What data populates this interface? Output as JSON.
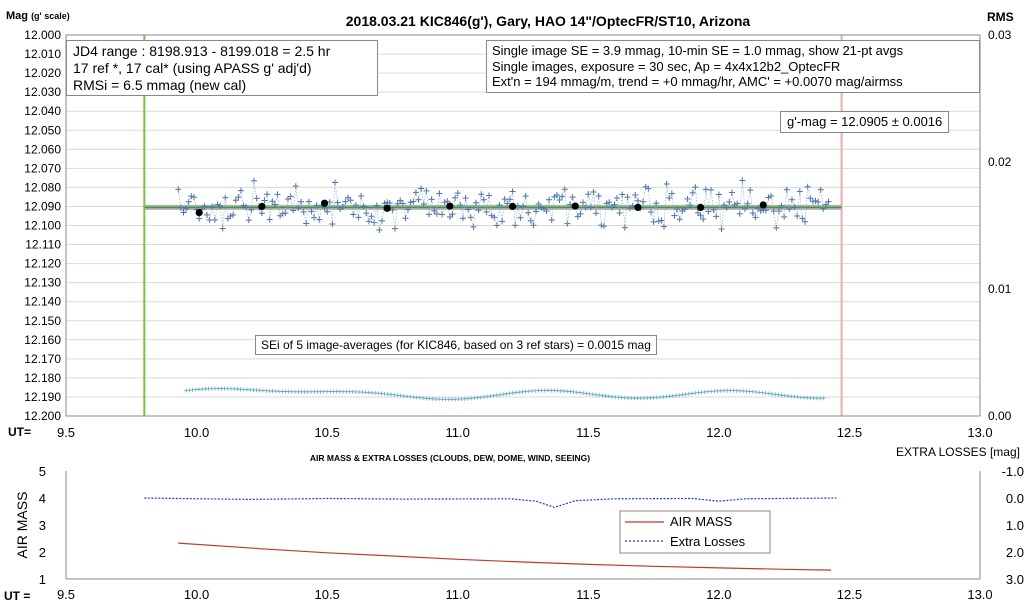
{
  "chart_data": [
    {
      "type": "scatter",
      "title": "2018.03.21  KIC846(g'),  Gary, HAO  14\"/OptecFR/ST10,  Arizona",
      "ylabel": "Mag",
      "ylabel_note": "(g' scale)",
      "y2label": "RMS",
      "xlabel": "UT=",
      "xlim": [
        9.5,
        13.0
      ],
      "ylim": [
        12.2,
        12.0
      ],
      "y2lim": [
        0.0,
        0.03
      ],
      "xticks": [
        "9.5",
        "10.0",
        "10.5",
        "11.0",
        "11.5",
        "12.0",
        "12.5",
        "13.0"
      ],
      "yticks": [
        "12.000",
        "12.010",
        "12.020",
        "12.030",
        "12.040",
        "12.050",
        "12.060",
        "12.070",
        "12.080",
        "12.090",
        "12.100",
        "12.110",
        "12.120",
        "12.130",
        "12.140",
        "12.150",
        "12.160",
        "12.170",
        "12.180",
        "12.190",
        "12.200"
      ],
      "y2ticks": [
        "0.03",
        "0.02",
        "0.01",
        "0.00"
      ],
      "grid": true,
      "vlines": [
        {
          "x": 9.8,
          "color": "#7cc242"
        },
        {
          "x": 12.47,
          "color": "#f2a8a8"
        }
      ],
      "mean_mag": 12.0905,
      "mean_mag_label": "g'-mag = 12.0905 ± 0.0016",
      "single_images_start": 9.93,
      "single_images_end": 12.42,
      "single_images_count": 250,
      "single_images_scatter_mmag": 3.9,
      "rms_curve_range": [
        0.0008,
        0.0025
      ],
      "series": [
        {
          "kind": "five_image_averages",
          "x": [
            10.01,
            10.25,
            10.49,
            10.73,
            10.97,
            11.21,
            11.45,
            11.69,
            11.93,
            12.17
          ],
          "y": [
            12.0932,
            12.09,
            12.0883,
            12.091,
            12.0898,
            12.09,
            12.0898,
            12.0905,
            12.0905,
            12.0892
          ]
        }
      ],
      "annotations": {
        "jd_range": "JD4 range : 8198.913 - 8199.018 = 2.5  hr",
        "ref_stars": "17 ref *, 17 cal* (using APASS g' adj'd)",
        "rmsi": "RMSi = 6.5 mmag (new cal)",
        "info_line1": "Single image SE = 3.9 mmag, 10-min SE = 1.0 mmag, show  21-pt avgs",
        "info_line2": "Single images, exposure = 30 sec, Ap = 4x4x12b2_OptecFR",
        "info_line3": "Ext'n = 194 mmag/m, trend =  +0 mmag/hr, AMC' = +0.0070 mag/airmss",
        "sei": "SEi of 5 image-averages (for KIC846, based on 3 ref stars) = 0.0015  mag"
      }
    },
    {
      "type": "line",
      "title": "AIR MASS & EXTRA LOSSES (CLOUDS, DEW, DOME, WIND, SEEING)",
      "ylabel": "AIR MASS",
      "y2label": "EXTRA LOSSES [mag]",
      "xlabel": "UT =",
      "xlim": [
        9.5,
        13.0
      ],
      "ylim": [
        1,
        5
      ],
      "y2lim": [
        3.0,
        -1.0
      ],
      "xticks": [
        "9.5",
        "10.0",
        "10.5",
        "11.0",
        "11.5",
        "12.0",
        "12.5",
        "13.0"
      ],
      "yticks": [
        "1",
        "2",
        "3",
        "4",
        "5"
      ],
      "y2ticks": [
        "3.0",
        "2.0",
        "1.0",
        "0.0",
        "-1.0"
      ],
      "legend": [
        "AIR MASS",
        "Extra Losses"
      ],
      "series": [
        {
          "name": "AIR MASS",
          "color": "#c0392b",
          "x": [
            9.93,
            10.25,
            10.5,
            10.75,
            11.0,
            11.25,
            11.5,
            11.75,
            12.0,
            12.25,
            12.43
          ],
          "y": [
            2.33,
            2.12,
            1.97,
            1.85,
            1.73,
            1.63,
            1.54,
            1.47,
            1.41,
            1.36,
            1.33
          ]
        },
        {
          "name": "Extra Losses",
          "color": "#1f3fbf",
          "x": [
            9.8,
            9.93,
            10.2,
            10.5,
            10.8,
            11.2,
            11.3,
            11.37,
            11.45,
            11.6,
            11.9,
            12.0,
            12.1,
            12.45
          ],
          "y": [
            0.0,
            0.02,
            0.05,
            0.02,
            0.04,
            0.03,
            0.12,
            0.35,
            0.1,
            0.03,
            0.02,
            0.12,
            0.03,
            0.0
          ]
        }
      ]
    }
  ]
}
